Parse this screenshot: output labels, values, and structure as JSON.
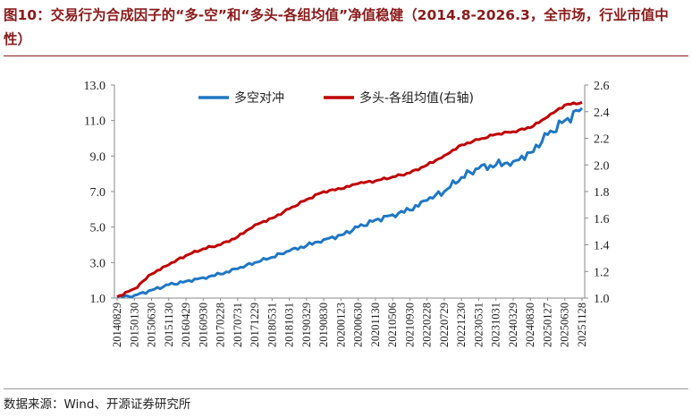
{
  "title": "图10：交易行为合成因子的“多-空”和“多头-各组均值”净值稳健（2014.8-2026.3，全市场，行业市值中性）",
  "source": "数据来源：Wind、开源证券研究所",
  "chart_data": {
    "type": "line",
    "title": "",
    "x": [
      "20140829",
      "20150130",
      "20150630",
      "20151130",
      "20160429",
      "20160930",
      "20170228",
      "20170731",
      "20171229",
      "20180531",
      "20181031",
      "20190329",
      "20190830",
      "20200123",
      "20200630",
      "20201130",
      "20210506",
      "20210930",
      "20220228",
      "20220729",
      "20221230",
      "20230531",
      "20231031",
      "20240329",
      "20240830",
      "20250127",
      "20250630",
      "20251128"
    ],
    "left_axis": {
      "ylim": [
        1.0,
        13.0
      ],
      "ticks": [
        "1.0",
        "3.0",
        "5.0",
        "7.0",
        "9.0",
        "11.0",
        "13.0"
      ]
    },
    "right_axis": {
      "ylim": [
        1.0,
        2.6
      ],
      "ticks": [
        "1.0",
        "1.2",
        "1.4",
        "1.6",
        "1.8",
        "2.0",
        "2.2",
        "2.4",
        "2.6"
      ]
    },
    "legend_position": "top",
    "series": [
      {
        "name": "多空对冲",
        "axis": "left",
        "color": "#1f77c4",
        "values": [
          1.05,
          1.15,
          1.45,
          1.75,
          1.95,
          2.15,
          2.35,
          2.65,
          3.0,
          3.3,
          3.65,
          3.95,
          4.3,
          4.55,
          5.0,
          5.4,
          5.7,
          5.95,
          6.5,
          7.0,
          7.8,
          8.3,
          8.5,
          8.7,
          9.2,
          10.2,
          11.0,
          11.7
        ]
      },
      {
        "name": "多头-各组均值(右轴)",
        "axis": "right",
        "color": "#c00000",
        "values": [
          1.01,
          1.07,
          1.18,
          1.25,
          1.32,
          1.37,
          1.4,
          1.46,
          1.55,
          1.6,
          1.67,
          1.74,
          1.8,
          1.82,
          1.86,
          1.88,
          1.91,
          1.94,
          2.0,
          2.07,
          2.15,
          2.19,
          2.23,
          2.25,
          2.28,
          2.36,
          2.45,
          2.47
        ]
      }
    ]
  }
}
